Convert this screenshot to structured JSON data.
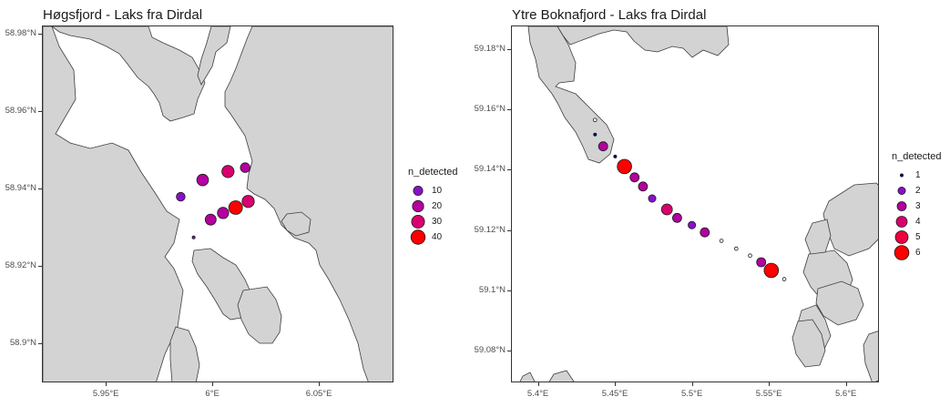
{
  "chart_data": [
    {
      "type": "scatter",
      "title": "Høgsfjord - Laks fra Dirdal",
      "legend_title": "n_detected",
      "legend_position": "right",
      "x_ticks": [
        {
          "value": 5.95,
          "label": "5.95°E"
        },
        {
          "value": 6.0,
          "label": "6°E"
        },
        {
          "value": 6.05,
          "label": "6.05°E"
        }
      ],
      "y_ticks": [
        {
          "value": 58.9,
          "label": "58.9°N"
        },
        {
          "value": 58.92,
          "label": "58.92°N"
        },
        {
          "value": 58.94,
          "label": "58.94°N"
        },
        {
          "value": 58.96,
          "label": "58.96°N"
        },
        {
          "value": 58.98,
          "label": "58.98°N"
        }
      ],
      "xlim": [
        5.92,
        6.085
      ],
      "ylim": [
        58.89,
        58.982
      ],
      "legend_entries": [
        {
          "value": 10,
          "label": "10",
          "color": "#8a0fc8"
        },
        {
          "value": 20,
          "label": "20",
          "color": "#b3009f"
        },
        {
          "value": 30,
          "label": "30",
          "color": "#d8006f"
        },
        {
          "value": 40,
          "label": "40",
          "color": "#ff0000"
        }
      ],
      "points": [
        {
          "lon": 5.9847,
          "lat": 58.9381,
          "n": 8
        },
        {
          "lon": 5.995,
          "lat": 58.9424,
          "n": 22
        },
        {
          "lon": 6.0069,
          "lat": 58.9446,
          "n": 25
        },
        {
          "lon": 6.015,
          "lat": 58.9456,
          "n": 12
        },
        {
          "lon": 5.9988,
          "lat": 58.9322,
          "n": 18
        },
        {
          "lon": 6.0046,
          "lat": 58.9339,
          "n": 20
        },
        {
          "lon": 6.0105,
          "lat": 58.9353,
          "n": 36
        },
        {
          "lon": 6.0164,
          "lat": 58.9369,
          "n": 25
        },
        {
          "lon": 5.9908,
          "lat": 58.9276,
          "n": 2
        }
      ]
    },
    {
      "type": "scatter",
      "title": "Ytre Boknafjord - Laks fra Dirdal",
      "legend_title": "n_detected",
      "legend_position": "right",
      "x_ticks": [
        {
          "value": 5.4,
          "label": "5.4°E"
        },
        {
          "value": 5.45,
          "label": "5.45°E"
        },
        {
          "value": 5.5,
          "label": "5.5°E"
        },
        {
          "value": 5.55,
          "label": "5.55°E"
        },
        {
          "value": 5.6,
          "label": "5.6°E"
        }
      ],
      "y_ticks": [
        {
          "value": 59.08,
          "label": "59.08°N"
        },
        {
          "value": 59.1,
          "label": "59.1°N"
        },
        {
          "value": 59.12,
          "label": "59.12°N"
        },
        {
          "value": 59.14,
          "label": "59.14°N"
        },
        {
          "value": 59.16,
          "label": "59.16°N"
        },
        {
          "value": 59.18,
          "label": "59.18°N"
        }
      ],
      "xlim": [
        5.3825,
        5.6215
      ],
      "ylim": [
        59.0695,
        59.1877
      ],
      "legend_entries": [
        {
          "value": 1,
          "label": "1",
          "color": "#00008b"
        },
        {
          "value": 2,
          "label": "2",
          "color": "#8a0fc8"
        },
        {
          "value": 3,
          "label": "3",
          "color": "#b3009f"
        },
        {
          "value": 4,
          "label": "4",
          "color": "#d8006f"
        },
        {
          "value": 5,
          "label": "5",
          "color": "#ec0040"
        },
        {
          "value": 6,
          "label": "6",
          "color": "#ff0000"
        }
      ],
      "points": [
        {
          "lon": 5.4365,
          "lat": 59.1567,
          "n": 0
        },
        {
          "lon": 5.4365,
          "lat": 59.1519,
          "n": 1
        },
        {
          "lon": 5.4418,
          "lat": 59.148,
          "n": 3
        },
        {
          "lon": 5.4496,
          "lat": 59.1446,
          "n": 1
        },
        {
          "lon": 5.4556,
          "lat": 59.1413,
          "n": 6
        },
        {
          "lon": 5.4622,
          "lat": 59.1377,
          "n": 3
        },
        {
          "lon": 5.4676,
          "lat": 59.1347,
          "n": 3
        },
        {
          "lon": 5.4736,
          "lat": 59.1307,
          "n": 2
        },
        {
          "lon": 5.4832,
          "lat": 59.1271,
          "n": 4
        },
        {
          "lon": 5.4898,
          "lat": 59.1243,
          "n": 3
        },
        {
          "lon": 5.4994,
          "lat": 59.1219,
          "n": 2
        },
        {
          "lon": 5.5078,
          "lat": 59.1195,
          "n": 3
        },
        {
          "lon": 5.5186,
          "lat": 59.1167,
          "n": 0
        },
        {
          "lon": 5.5282,
          "lat": 59.1141,
          "n": 0
        },
        {
          "lon": 5.5372,
          "lat": 59.1118,
          "n": 0
        },
        {
          "lon": 5.5444,
          "lat": 59.1096,
          "n": 3
        },
        {
          "lon": 5.551,
          "lat": 59.1069,
          "n": 6
        },
        {
          "lon": 5.5594,
          "lat": 59.104,
          "n": 0
        }
      ]
    }
  ]
}
